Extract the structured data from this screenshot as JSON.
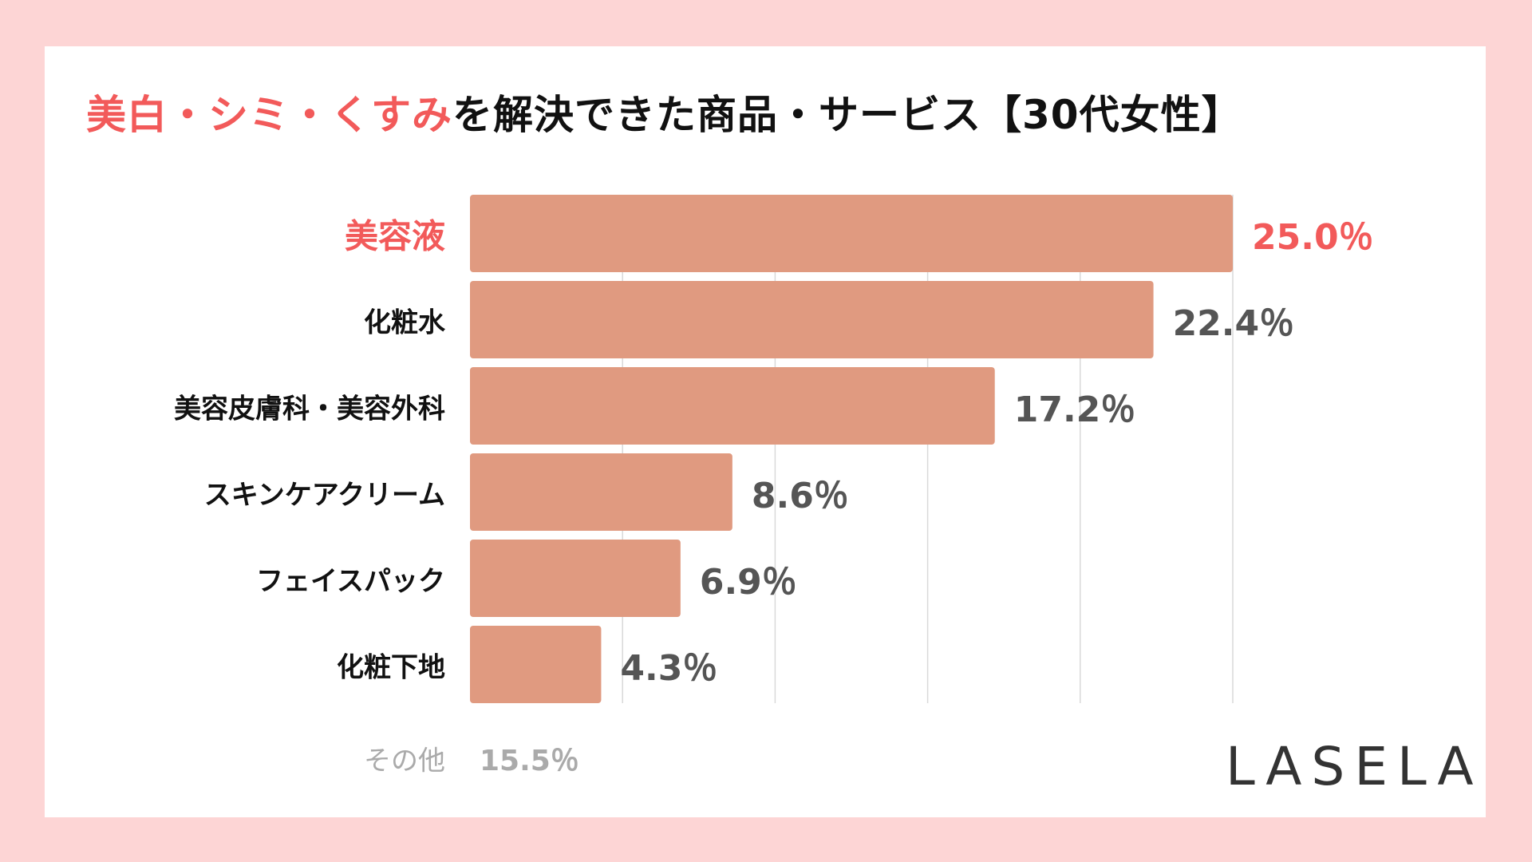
{
  "title": {
    "highlight": "美白・シミ・くすみ",
    "rest": "を解決できた商品・サービス【30代女性】"
  },
  "colors": {
    "background": "#fdd5d5",
    "bar": "#e09a80",
    "accent": "#f25a5a",
    "value_text": "#555555",
    "grid": "#d9d9d9"
  },
  "chart_data": {
    "type": "bar",
    "orientation": "horizontal",
    "categories": [
      "美容液",
      "化粧水",
      "美容皮膚科・美容外科",
      "スキンケアクリーム",
      "フェイスパック",
      "化粧下地"
    ],
    "values": [
      25.0,
      22.4,
      17.2,
      8.6,
      6.9,
      4.3
    ],
    "value_labels": [
      "25.0％",
      "22.4％",
      "17.2％",
      "8.6％",
      "6.9％",
      "4.3％"
    ],
    "unit": "%",
    "xlim": [
      0,
      25
    ],
    "grid": true,
    "grid_step": 5,
    "highlight_index": 0
  },
  "other": {
    "label": "その他",
    "value": "15.5％"
  },
  "logo": "LASELA"
}
